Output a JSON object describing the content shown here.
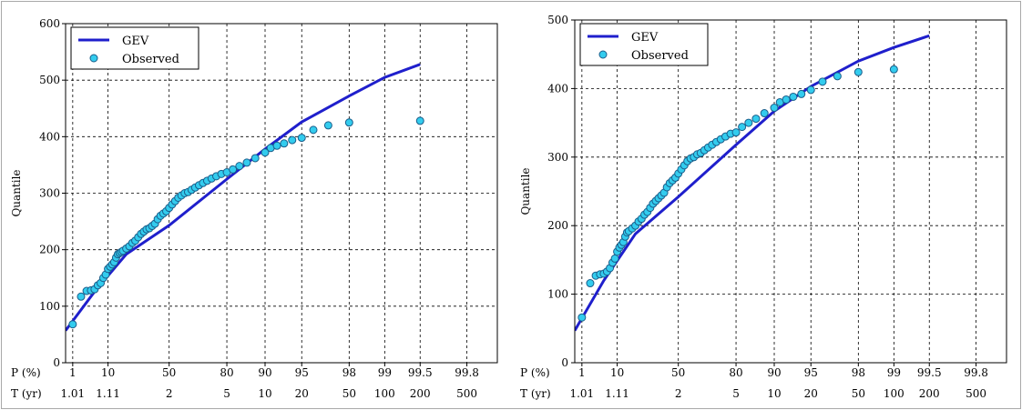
{
  "chart_data": [
    {
      "type": "line",
      "ylabel": "Quantile",
      "ylim": [
        0,
        600
      ],
      "yticks": [
        0,
        100,
        200,
        300,
        400,
        500,
        600
      ],
      "x_scale": "probability-gumbel",
      "xlim_P": [
        0.5,
        99.89
      ],
      "P_row_label": "P (%)",
      "T_row_label": "T (yr)",
      "P_ticks": [
        "1",
        "10",
        "50",
        "80",
        "90",
        "95",
        "98",
        "99",
        "99.5",
        "99.8"
      ],
      "T_ticks": [
        "1.01",
        "1.11",
        "2",
        "5",
        "10",
        "20",
        "50",
        "100",
        "200",
        "500"
      ],
      "grid": true,
      "legend_position": "top-left",
      "colors": {
        "curve": "#1f1fcc",
        "observed_fill": "#33ccee",
        "observed_edge": "#1a5d8a"
      },
      "series": [
        {
          "name": "GEV",
          "kind": "line",
          "points": [
            [
              0.5,
              57
            ],
            [
              5,
              126
            ],
            [
              20,
              192
            ],
            [
              50,
              243
            ],
            [
              80,
              325
            ],
            [
              90,
              378
            ],
            [
              95,
              426
            ],
            [
              98,
              472
            ],
            [
              99,
              505
            ],
            [
              99.5,
              528
            ]
          ]
        },
        {
          "name": "Observed",
          "kind": "scatter",
          "points": [
            [
              1,
              68
            ],
            [
              2,
              117
            ],
            [
              3,
              127
            ],
            [
              4,
              128
            ],
            [
              5,
              130
            ],
            [
              6,
              137
            ],
            [
              7,
              141
            ],
            [
              8,
              150
            ],
            [
              9,
              156
            ],
            [
              10,
              166
            ],
            [
              11,
              170
            ],
            [
              12,
              174
            ],
            [
              13,
              178
            ],
            [
              14,
              186
            ],
            [
              15,
              192
            ],
            [
              16,
              194
            ],
            [
              17,
              196
            ],
            [
              18,
              198
            ],
            [
              20,
              202
            ],
            [
              22,
              206
            ],
            [
              24,
              212
            ],
            [
              26,
              216
            ],
            [
              28,
              222
            ],
            [
              30,
              228
            ],
            [
              32,
              232
            ],
            [
              34,
              236
            ],
            [
              36,
              238
            ],
            [
              38,
              242
            ],
            [
              40,
              246
            ],
            [
              42,
              254
            ],
            [
              44,
              260
            ],
            [
              46,
              264
            ],
            [
              48,
              268
            ],
            [
              50,
              274
            ],
            [
              52,
              280
            ],
            [
              54,
              286
            ],
            [
              56,
              292
            ],
            [
              58,
              296
            ],
            [
              60,
              300
            ],
            [
              62,
              302
            ],
            [
              64,
              306
            ],
            [
              66,
              310
            ],
            [
              68,
              314
            ],
            [
              70,
              318
            ],
            [
              72,
              322
            ],
            [
              74,
              326
            ],
            [
              76,
              330
            ],
            [
              78,
              334
            ],
            [
              80,
              337
            ],
            [
              82,
              342
            ],
            [
              84,
              348
            ],
            [
              86,
              354
            ],
            [
              88,
              362
            ],
            [
              90,
              372
            ],
            [
              91,
              380
            ],
            [
              92,
              384
            ],
            [
              93,
              388
            ],
            [
              94,
              394
            ],
            [
              95,
              398
            ],
            [
              96,
              412
            ],
            [
              97,
              420
            ],
            [
              98,
              425
            ],
            [
              99.5,
              428
            ]
          ]
        }
      ]
    },
    {
      "type": "line",
      "ylabel": "Quantile",
      "ylim": [
        0,
        500
      ],
      "yticks": [
        0,
        100,
        200,
        300,
        400,
        500
      ],
      "x_scale": "probability-gumbel",
      "xlim_P": [
        0.5,
        99.89
      ],
      "P_row_label": "P (%)",
      "T_row_label": "T (yr)",
      "P_ticks": [
        "1",
        "10",
        "50",
        "80",
        "90",
        "95",
        "98",
        "99",
        "99.5",
        "99.8"
      ],
      "T_ticks": [
        "1.01",
        "1.11",
        "2",
        "5",
        "10",
        "20",
        "50",
        "100",
        "200",
        "500"
      ],
      "grid": true,
      "legend_position": "top-left",
      "colors": {
        "curve": "#1f1fcc",
        "observed_fill": "#33ccee",
        "observed_edge": "#1a5d8a"
      },
      "series": [
        {
          "name": "GEV",
          "kind": "line",
          "points": [
            [
              0.5,
              47
            ],
            [
              5,
              120
            ],
            [
              20,
              188
            ],
            [
              50,
              242
            ],
            [
              80,
              318
            ],
            [
              90,
              367
            ],
            [
              95,
              403
            ],
            [
              98,
              440
            ],
            [
              99,
              460
            ],
            [
              99.5,
              477
            ]
          ]
        },
        {
          "name": "Observed",
          "kind": "scatter",
          "points": [
            [
              1,
              66
            ],
            [
              2,
              116
            ],
            [
              3,
              127
            ],
            [
              4,
              129
            ],
            [
              5,
              130
            ],
            [
              6,
              133
            ],
            [
              7,
              138
            ],
            [
              8,
              146
            ],
            [
              9,
              152
            ],
            [
              10,
              162
            ],
            [
              11,
              168
            ],
            [
              12,
              172
            ],
            [
              13,
              176
            ],
            [
              14,
              184
            ],
            [
              15,
              190
            ],
            [
              16,
              192
            ],
            [
              18,
              196
            ],
            [
              20,
              200
            ],
            [
              22,
              206
            ],
            [
              24,
              210
            ],
            [
              26,
              216
            ],
            [
              28,
              220
            ],
            [
              30,
              226
            ],
            [
              32,
              232
            ],
            [
              34,
              236
            ],
            [
              36,
              240
            ],
            [
              38,
              244
            ],
            [
              40,
              248
            ],
            [
              42,
              256
            ],
            [
              44,
              262
            ],
            [
              46,
              266
            ],
            [
              48,
              270
            ],
            [
              50,
              276
            ],
            [
              52,
              282
            ],
            [
              54,
              288
            ],
            [
              56,
              294
            ],
            [
              58,
              298
            ],
            [
              60,
              300
            ],
            [
              62,
              304
            ],
            [
              64,
              306
            ],
            [
              66,
              310
            ],
            [
              68,
              314
            ],
            [
              70,
              318
            ],
            [
              72,
              322
            ],
            [
              74,
              326
            ],
            [
              76,
              330
            ],
            [
              78,
              334
            ],
            [
              80,
              336
            ],
            [
              82,
              344
            ],
            [
              84,
              350
            ],
            [
              86,
              356
            ],
            [
              88,
              364
            ],
            [
              90,
              372
            ],
            [
              91,
              380
            ],
            [
              92,
              384
            ],
            [
              93,
              388
            ],
            [
              94,
              392
            ],
            [
              95,
              398
            ],
            [
              96,
              410
            ],
            [
              97,
              418
            ],
            [
              98,
              424
            ],
            [
              99,
              428
            ]
          ]
        }
      ]
    }
  ]
}
